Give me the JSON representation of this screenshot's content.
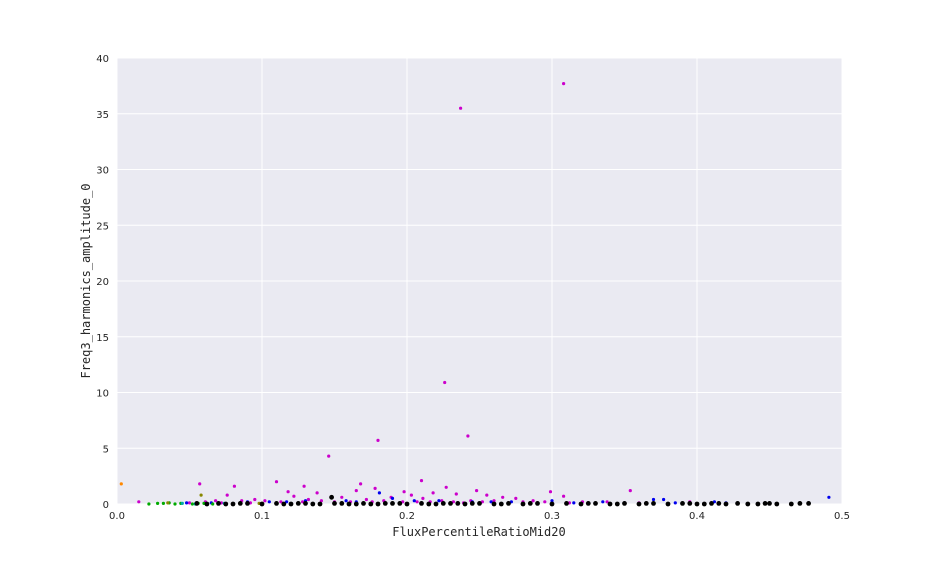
{
  "chart_data": {
    "type": "scatter",
    "title": "",
    "xlabel": "FluxPercentileRatioMid20",
    "ylabel": "Freq3_harmonics_amplitude_0",
    "xlim": [
      0.0,
      0.5
    ],
    "ylim": [
      0,
      40
    ],
    "xticks": [
      "0.0",
      "0.1",
      "0.2",
      "0.3",
      "0.4",
      "0.5"
    ],
    "yticks": [
      "0",
      "5",
      "10",
      "15",
      "20",
      "25",
      "30",
      "35",
      "40"
    ],
    "grid": true,
    "background_color": "#eaeaf2",
    "grid_color": "#ffffff",
    "series": [
      {
        "color": "#cc00cc",
        "points": [
          [
            0.308,
            37.7
          ],
          [
            0.237,
            35.5
          ],
          [
            0.226,
            10.9
          ],
          [
            0.242,
            6.1
          ],
          [
            0.18,
            5.7
          ],
          [
            0.146,
            4.3
          ],
          [
            0.21,
            2.1
          ],
          [
            0.11,
            2.0
          ],
          [
            0.057,
            1.8
          ],
          [
            0.168,
            1.8
          ],
          [
            0.081,
            1.6
          ],
          [
            0.129,
            1.6
          ],
          [
            0.227,
            1.5
          ],
          [
            0.178,
            1.4
          ],
          [
            0.165,
            1.2
          ],
          [
            0.299,
            1.1
          ],
          [
            0.354,
            1.2
          ],
          [
            0.118,
            1.1
          ],
          [
            0.138,
            1.0
          ],
          [
            0.198,
            1.1
          ],
          [
            0.248,
            1.2
          ],
          [
            0.218,
            1.0
          ],
          [
            0.234,
            0.9
          ],
          [
            0.255,
            0.8
          ],
          [
            0.203,
            0.8
          ],
          [
            0.076,
            0.8
          ],
          [
            0.308,
            0.7
          ],
          [
            0.122,
            0.7
          ],
          [
            0.155,
            0.6
          ],
          [
            0.189,
            0.6
          ],
          [
            0.266,
            0.6
          ],
          [
            0.275,
            0.5
          ],
          [
            0.095,
            0.4
          ],
          [
            0.068,
            0.3
          ],
          [
            0.102,
            0.3
          ],
          [
            0.132,
            0.4
          ],
          [
            0.172,
            0.4
          ],
          [
            0.211,
            0.5
          ],
          [
            0.224,
            0.3
          ],
          [
            0.244,
            0.3
          ],
          [
            0.26,
            0.3
          ],
          [
            0.287,
            0.3
          ],
          [
            0.321,
            0.2
          ],
          [
            0.338,
            0.2
          ],
          [
            0.061,
            0.2
          ],
          [
            0.086,
            0.3
          ],
          [
            0.113,
            0.2
          ],
          [
            0.141,
            0.3
          ],
          [
            0.161,
            0.2
          ],
          [
            0.184,
            0.3
          ],
          [
            0.197,
            0.2
          ],
          [
            0.232,
            0.2
          ],
          [
            0.252,
            0.2
          ],
          [
            0.28,
            0.2
          ],
          [
            0.295,
            0.2
          ],
          [
            0.312,
            0.1
          ],
          [
            0.36,
            0.1
          ],
          [
            0.395,
            0.2
          ],
          [
            0.05,
            0.1
          ],
          [
            0.072,
            0.1
          ],
          [
            0.092,
            0.1
          ],
          [
            0.128,
            0.2
          ],
          [
            0.15,
            0.2
          ],
          [
            0.176,
            0.2
          ],
          [
            0.207,
            0.2
          ],
          [
            0.216,
            0.2
          ],
          [
            0.239,
            0.1
          ],
          [
            0.27,
            0.1
          ],
          [
            0.015,
            0.2
          ]
        ]
      },
      {
        "color": "#0000ee",
        "points": [
          [
            0.491,
            0.6
          ],
          [
            0.181,
            1.0
          ],
          [
            0.37,
            0.4
          ],
          [
            0.377,
            0.4
          ],
          [
            0.19,
            0.5
          ],
          [
            0.3,
            0.3
          ],
          [
            0.205,
            0.3
          ],
          [
            0.222,
            0.3
          ],
          [
            0.335,
            0.2
          ],
          [
            0.412,
            0.2
          ],
          [
            0.13,
            0.3
          ],
          [
            0.158,
            0.3
          ],
          [
            0.272,
            0.2
          ],
          [
            0.245,
            0.2
          ],
          [
            0.35,
            0.1
          ],
          [
            0.385,
            0.1
          ],
          [
            0.42,
            0.1
          ],
          [
            0.105,
            0.2
          ],
          [
            0.048,
            0.1
          ],
          [
            0.065,
            0.1
          ],
          [
            0.09,
            0.2
          ],
          [
            0.117,
            0.2
          ],
          [
            0.165,
            0.2
          ],
          [
            0.258,
            0.2
          ],
          [
            0.315,
            0.1
          ]
        ]
      },
      {
        "color": "#00aa00",
        "points": [
          [
            0.022,
            0.0
          ],
          [
            0.028,
            0.05
          ],
          [
            0.032,
            0.05
          ],
          [
            0.036,
            0.1
          ],
          [
            0.04,
            0.0
          ],
          [
            0.044,
            0.05
          ],
          [
            0.052,
            0.0
          ],
          [
            0.056,
            0.05
          ],
          [
            0.06,
            0.05
          ],
          [
            0.066,
            0.0
          ]
        ]
      },
      {
        "color": "#ff8800",
        "points": [
          [
            0.003,
            1.8
          ],
          [
            0.1,
            0.05
          ]
        ]
      },
      {
        "color": "#888800",
        "points": [
          [
            0.058,
            0.8
          ],
          [
            0.098,
            0.05
          ],
          [
            0.035,
            0.1
          ]
        ]
      },
      {
        "color": "#00aaaa",
        "points": [
          [
            0.045,
            0.05
          ],
          [
            0.054,
            0.0
          ],
          [
            0.074,
            0.05
          ]
        ]
      },
      {
        "color": "#000000",
        "points": [
          [
            0.148,
            0.6
          ],
          [
            0.465,
            0.0
          ],
          [
            0.471,
            0.05
          ],
          [
            0.477,
            0.05
          ],
          [
            0.447,
            0.05
          ],
          [
            0.435,
            0.0
          ],
          [
            0.428,
            0.05
          ],
          [
            0.42,
            0.0
          ],
          [
            0.41,
            0.05
          ],
          [
            0.4,
            0.0
          ],
          [
            0.39,
            0.05
          ],
          [
            0.38,
            0.0
          ],
          [
            0.37,
            0.05
          ],
          [
            0.36,
            0.0
          ],
          [
            0.35,
            0.05
          ],
          [
            0.34,
            0.0
          ],
          [
            0.33,
            0.05
          ],
          [
            0.32,
            0.0
          ],
          [
            0.31,
            0.05
          ],
          [
            0.3,
            0.0
          ],
          [
            0.29,
            0.05
          ],
          [
            0.28,
            0.0
          ],
          [
            0.27,
            0.05
          ],
          [
            0.26,
            0.0
          ],
          [
            0.25,
            0.05
          ],
          [
            0.24,
            0.0
          ],
          [
            0.23,
            0.05
          ],
          [
            0.22,
            0.0
          ],
          [
            0.21,
            0.05
          ],
          [
            0.2,
            0.0
          ],
          [
            0.19,
            0.05
          ],
          [
            0.18,
            0.0
          ],
          [
            0.17,
            0.05
          ],
          [
            0.16,
            0.0
          ],
          [
            0.15,
            0.05
          ],
          [
            0.14,
            0.0
          ],
          [
            0.13,
            0.05
          ],
          [
            0.12,
            0.0
          ],
          [
            0.11,
            0.05
          ],
          [
            0.1,
            0.0
          ],
          [
            0.09,
            0.05
          ],
          [
            0.08,
            0.0
          ],
          [
            0.07,
            0.05
          ],
          [
            0.062,
            0.0
          ],
          [
            0.055,
            0.05
          ],
          [
            0.455,
            0.0
          ],
          [
            0.45,
            0.05
          ],
          [
            0.442,
            0.0
          ],
          [
            0.415,
            0.05
          ],
          [
            0.405,
            0.0
          ],
          [
            0.395,
            0.05
          ],
          [
            0.365,
            0.05
          ],
          [
            0.345,
            0.0
          ],
          [
            0.325,
            0.05
          ],
          [
            0.285,
            0.05
          ],
          [
            0.265,
            0.0
          ],
          [
            0.245,
            0.05
          ],
          [
            0.225,
            0.05
          ],
          [
            0.185,
            0.05
          ],
          [
            0.165,
            0.0
          ],
          [
            0.125,
            0.05
          ],
          [
            0.085,
            0.05
          ],
          [
            0.075,
            0.0
          ],
          [
            0.235,
            0.05
          ],
          [
            0.215,
            0.0
          ],
          [
            0.195,
            0.05
          ],
          [
            0.175,
            0.0
          ],
          [
            0.155,
            0.05
          ],
          [
            0.135,
            0.0
          ],
          [
            0.115,
            0.0
          ]
        ]
      }
    ]
  }
}
